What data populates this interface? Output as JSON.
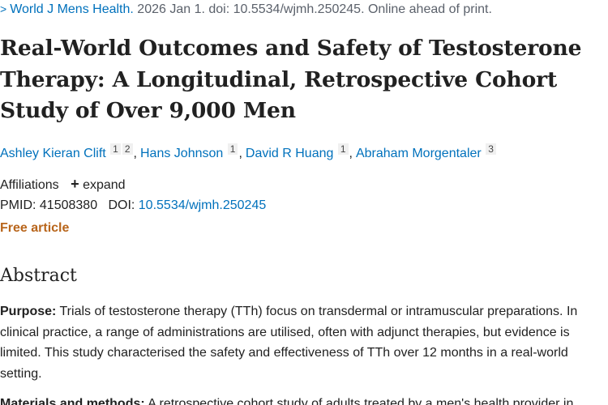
{
  "citation": {
    "journal": "World J Mens Health.",
    "details": "2026 Jan 1. doi: 10.5534/wjmh.250245. Online ahead of print."
  },
  "title": "Real-World Outcomes and Safety of Testosterone Therapy: A Longitudinal, Retrospective Cohort Study of Over 9,000 Men",
  "authors": [
    {
      "name": "Ashley Kieran Clift",
      "affils": [
        "1",
        "2"
      ]
    },
    {
      "name": "Hans Johnson",
      "affils": [
        "1"
      ]
    },
    {
      "name": "David R Huang",
      "affils": [
        "1"
      ]
    },
    {
      "name": "Abraham Morgentaler",
      "affils": [
        "3"
      ]
    }
  ],
  "affiliations": {
    "label": "Affiliations",
    "expand": "expand"
  },
  "ids": {
    "pmid_label": "PMID:",
    "pmid": "41508380",
    "doi_label": "DOI:",
    "doi": "10.5534/wjmh.250245"
  },
  "free_article": "Free article",
  "abstract": {
    "heading": "Abstract",
    "purpose_label": "Purpose:",
    "purpose_text": "Trials of testosterone therapy (TTh) focus on transdermal or intramuscular preparations. In clinical practice, a range of administrations are utilised, often with adjunct therapies, but evidence is limited. This study characterised the safety and effectiveness of TTh over 12 months in a real-world setting.",
    "methods_label": "Materials and methods:",
    "methods_text": "A retrospective cohort study of adults treated by a men's health provider in"
  }
}
